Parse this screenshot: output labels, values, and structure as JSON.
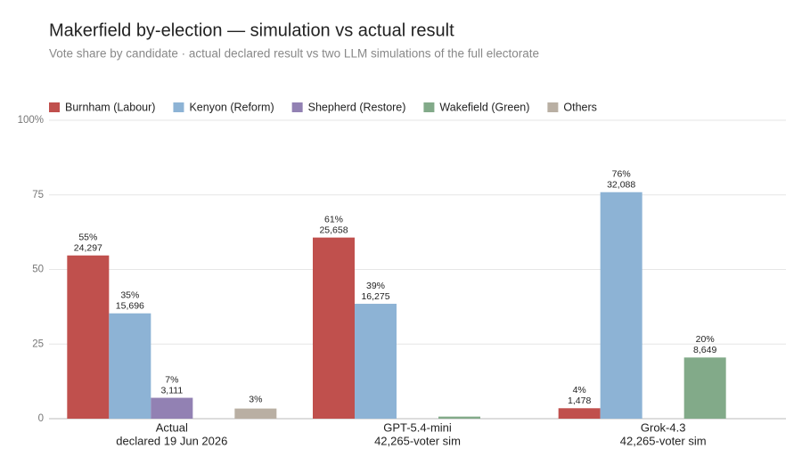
{
  "chart_data": {
    "type": "bar",
    "title": "Makerfield by-election — simulation vs actual result",
    "subtitle": "Vote share by candidate · actual declared result vs two LLM simulations of the full electorate",
    "categories": [
      "Actual",
      "GPT-5.4-mini",
      "Grok-4.3"
    ],
    "category_sublabels": [
      "declared 19 Jun 2026",
      "42,265-voter sim",
      "42,265-voter sim"
    ],
    "series": [
      {
        "name": "Burnham (Labour)",
        "color": "#c0504d",
        "values": [
          54.7,
          60.7,
          3.5
        ],
        "value_labels": [
          "55%",
          "61%",
          "4%"
        ],
        "count_labels": [
          "24,297",
          "25,658",
          "1,478"
        ]
      },
      {
        "name": "Kenyon (Reform)",
        "color": "#8db3d5",
        "values": [
          35.3,
          38.5,
          75.9
        ],
        "value_labels": [
          "35%",
          "39%",
          "76%"
        ],
        "count_labels": [
          "15,696",
          "16,275",
          "32,088"
        ]
      },
      {
        "name": "Shepherd (Restore)",
        "color": "#9281b3",
        "values": [
          7.0,
          null,
          null
        ],
        "value_labels": [
          "7%",
          null,
          null
        ],
        "count_labels": [
          "3,111",
          null,
          null
        ]
      },
      {
        "name": "Wakefield (Green)",
        "color": "#82aa89",
        "values": [
          null,
          0.7,
          20.5
        ],
        "value_labels": [
          null,
          null,
          "20%"
        ],
        "count_labels": [
          null,
          null,
          "8,649"
        ]
      },
      {
        "name": "Others",
        "color": "#b9afa3",
        "values": [
          3.4,
          null,
          null
        ],
        "value_labels": [
          "3%",
          null,
          null
        ],
        "count_labels": [
          null,
          null,
          null
        ]
      }
    ],
    "ylim": [
      0,
      100
    ],
    "yticks": [
      0,
      25,
      50,
      75,
      {
        "value": 100,
        "label": "100%"
      }
    ],
    "grid": true,
    "legend": "top"
  }
}
